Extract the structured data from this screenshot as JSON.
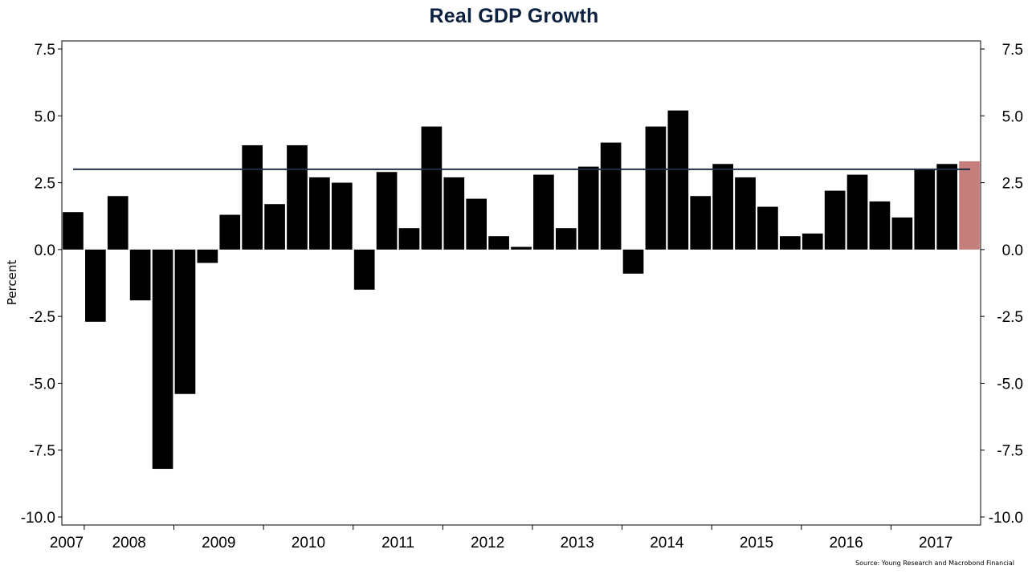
{
  "chart_data": {
    "type": "bar",
    "title": "Real GDP Growth",
    "ylabel": "Percent",
    "xlabel": "",
    "source": "Source: Young Research and Macrobond Financial",
    "ylim": [
      -10.3,
      7.8
    ],
    "y_ticks": [
      "7.5",
      "5.0",
      "2.5",
      "0.0",
      "-2.5",
      "-5.0",
      "-7.5",
      "-10.0"
    ],
    "y_tick_values": [
      7.5,
      5.0,
      2.5,
      0.0,
      -2.5,
      -5.0,
      -7.5,
      -10.0
    ],
    "x_year_labels": [
      "2007",
      "2008",
      "2009",
      "2010",
      "2011",
      "2012",
      "2013",
      "2014",
      "2015",
      "2016",
      "2017"
    ],
    "grid": false,
    "bar_color": "#000000",
    "highlight_color": "#c47f7c",
    "reference_line": {
      "value": 3.0,
      "color": "#1e2f40"
    },
    "categories": [
      "2007 Q4",
      "2008 Q1",
      "2008 Q2",
      "2008 Q3",
      "2008 Q4",
      "2009 Q1",
      "2009 Q2",
      "2009 Q3",
      "2009 Q4",
      "2010 Q1",
      "2010 Q2",
      "2010 Q3",
      "2010 Q4",
      "2011 Q1",
      "2011 Q2",
      "2011 Q3",
      "2011 Q4",
      "2012 Q1",
      "2012 Q2",
      "2012 Q3",
      "2012 Q4",
      "2013 Q1",
      "2013 Q2",
      "2013 Q3",
      "2013 Q4",
      "2014 Q1",
      "2014 Q2",
      "2014 Q3",
      "2014 Q4",
      "2015 Q1",
      "2015 Q2",
      "2015 Q3",
      "2015 Q4",
      "2016 Q1",
      "2016 Q2",
      "2016 Q3",
      "2016 Q4",
      "2017 Q1",
      "2017 Q2",
      "2017 Q3",
      "2017 Q4"
    ],
    "values": [
      1.4,
      -2.7,
      2.0,
      -1.9,
      -8.2,
      -5.4,
      -0.5,
      1.3,
      3.9,
      1.7,
      3.9,
      2.7,
      2.5,
      -1.5,
      2.9,
      0.8,
      4.6,
      2.7,
      1.9,
      0.5,
      0.1,
      2.8,
      0.8,
      3.1,
      4.0,
      -0.9,
      4.6,
      5.2,
      2.0,
      3.2,
      2.7,
      1.6,
      0.5,
      0.6,
      2.2,
      2.8,
      1.8,
      1.2,
      3.0,
      3.2,
      3.3
    ],
    "highlight_index": 40
  }
}
